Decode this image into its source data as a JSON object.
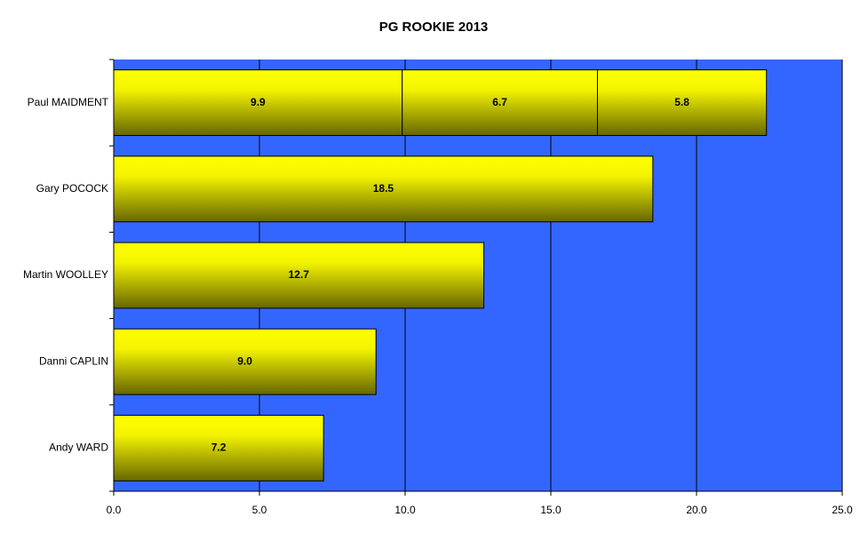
{
  "chart_data": {
    "type": "stacked_barh",
    "title": "PG ROOKIE 2013",
    "categories": [
      "Paul MAIDMENT",
      "Gary POCOCK",
      "Martin WOOLLEY",
      "Danni CAPLIN",
      "Andy WARD"
    ],
    "series": [
      {
        "color": "#ffff00",
        "values": [
          9.9,
          18.5,
          12.7,
          9.0,
          7.2
        ],
        "value_labels": [
          "9.9",
          "18.5",
          "12.7",
          "9.0",
          "7.2"
        ]
      },
      {
        "color": "#ffff00",
        "values": [
          6.7,
          null,
          null,
          null,
          null
        ],
        "value_labels": [
          "6.7",
          null,
          null,
          null,
          null
        ]
      },
      {
        "color": "#ffff00",
        "values": [
          5.8,
          null,
          null,
          null,
          null
        ],
        "value_labels": [
          "5.8",
          null,
          null,
          null,
          null
        ]
      }
    ],
    "xlim": [
      0,
      25
    ],
    "xticks": [
      {
        "value": 0,
        "label": "0.0"
      },
      {
        "value": 5,
        "label": "5.0"
      },
      {
        "value": 10,
        "label": "10.0"
      },
      {
        "value": 15,
        "label": "15.0"
      },
      {
        "value": 20,
        "label": "20.0"
      },
      {
        "value": 25,
        "label": "25.0"
      }
    ],
    "grid": true,
    "plot_background": "#3366ff"
  }
}
